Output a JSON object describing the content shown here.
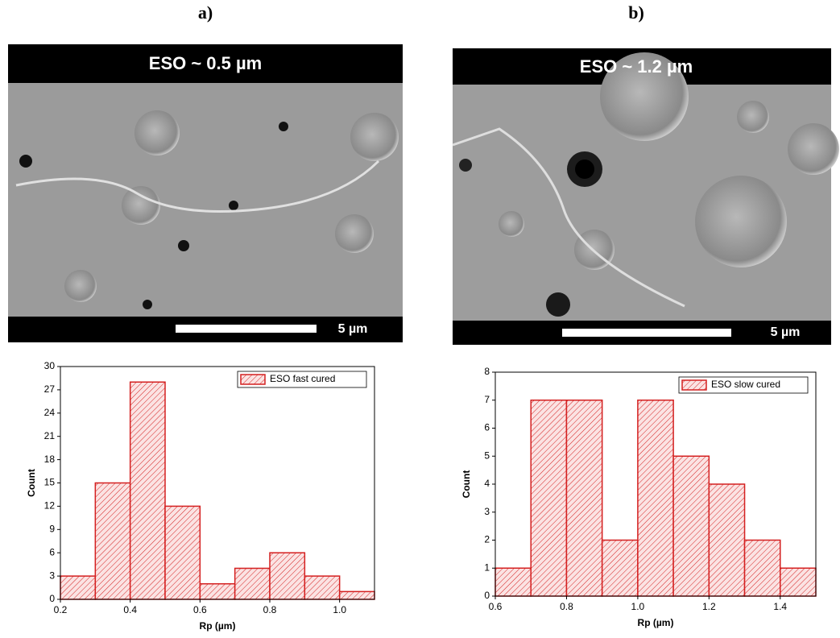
{
  "images": [
    {
      "label": "a)",
      "caption": "ESO ~  0.5 µm",
      "scale": "5 µm"
    },
    {
      "label": "b)",
      "caption": "ESO ~ 1.2 µm",
      "scale": "5 µm"
    }
  ],
  "chart_data": [
    {
      "type": "histogram",
      "bins": [
        0.2,
        0.3,
        0.4,
        0.5,
        0.6,
        0.7,
        0.8,
        0.9,
        1.0,
        1.1
      ],
      "values": [
        3,
        15,
        28,
        12,
        2,
        4,
        6,
        3,
        1
      ],
      "series_name": "ESO fast cured",
      "color": "#d42020",
      "x_label": "Rp (µm)",
      "y_label": "Count",
      "xlim": [
        0.2,
        1.1
      ],
      "xticks": [
        0.2,
        0.4,
        0.6,
        0.8,
        {
          "value": 1,
          "label": "1.0"
        }
      ],
      "ylim": [
        0,
        30
      ],
      "yticks": [
        0,
        3,
        6,
        9,
        12,
        15,
        18,
        21,
        24,
        27,
        30
      ],
      "legend": "top-right"
    },
    {
      "type": "histogram",
      "bins": [
        0.6,
        0.7,
        0.8,
        0.9,
        1.0,
        1.1,
        1.2,
        1.3,
        1.4,
        1.5
      ],
      "values": [
        1,
        7,
        7,
        2,
        7,
        5,
        4,
        2,
        1
      ],
      "series_name": "ESO slow cured",
      "color": "#d42020",
      "x_label": "Rp (µm)",
      "y_label": "Count",
      "xlim": [
        0.6,
        1.5
      ],
      "xticks": [
        0.6,
        0.8,
        {
          "value": 1,
          "label": "1.0"
        },
        1.2,
        1.4
      ],
      "ylim": [
        0,
        8
      ],
      "yticks": [
        0,
        1,
        2,
        3,
        4,
        5,
        6,
        7,
        8
      ],
      "legend": "top-right"
    }
  ]
}
